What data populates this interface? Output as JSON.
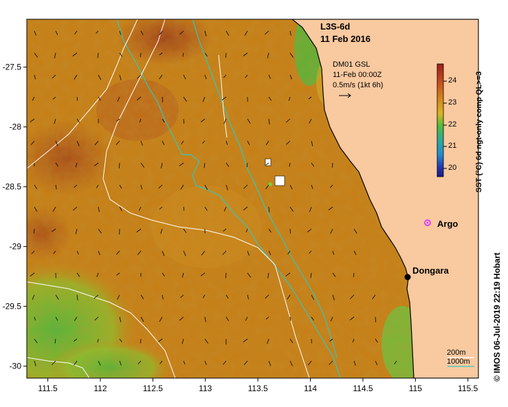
{
  "map": {
    "title": "L3S-6d",
    "date": "11 Feb 2016",
    "current_label_1": "DM01 GSL",
    "current_label_2": "11-Feb 00:00Z",
    "current_label_3": "0.5m/s (1kt 6h)",
    "credit": "© IMOS 06-Jul-2019 22:19 Hobart",
    "colorbar_title": "SST (°C) 6d ngt-only comp QL>=3",
    "colorbar_ticks": [
      "24",
      "23",
      "22",
      "21",
      "20"
    ],
    "colorbar_range": [
      19.6,
      24.8
    ],
    "x_ticks": [
      "111.5",
      "112",
      "112.5",
      "113",
      "113.5",
      "114",
      "114.5",
      "115",
      "115.5"
    ],
    "y_ticks": [
      "-27.5",
      "-28",
      "-28.5",
      "-29",
      "-29.5",
      "-30"
    ],
    "lon_range": [
      111.3,
      115.6
    ],
    "lat_range": [
      -30.1,
      -27.1
    ],
    "places": [
      {
        "name": "Argo",
        "lon": 115.15,
        "lat": -28.82
      },
      {
        "name": "Dongara",
        "lon": 114.93,
        "lat": -29.25
      }
    ],
    "legend": {
      "contour_200m": "200m",
      "contour_1000m": "1000m"
    },
    "colors": {
      "land": "#f9c9a0",
      "warm": "#c26a10",
      "hot": "#a8401a",
      "cool": "#5fbf3a",
      "isobath_1000": "#30c7c2",
      "isobath_200": "#ffffff",
      "argo": "#e040ff"
    }
  }
}
